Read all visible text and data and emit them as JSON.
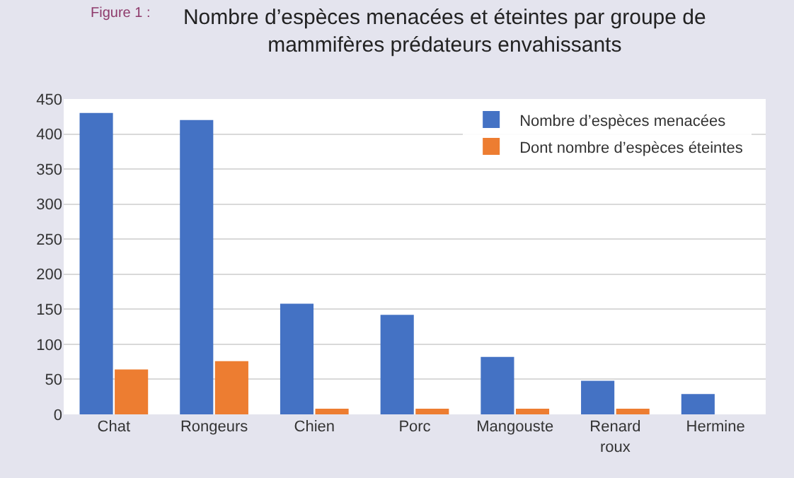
{
  "chart_data": {
    "type": "bar",
    "title": "Nombre d’espèces menacées et éteintes par groupe de mammifères prédateurs envahissants",
    "annotations": [
      "Figure 1 :"
    ],
    "categories": [
      "Chat",
      "Rongeurs",
      "Chien",
      "Porc",
      "Mangouste",
      "Renard roux",
      "Hermine"
    ],
    "series": [
      {
        "name": "Nombre d’espèces menacées",
        "color": "#4472c4",
        "values": [
          430,
          420,
          158,
          142,
          82,
          48,
          29
        ]
      },
      {
        "name": "Dont nombre d’espèces éteintes",
        "color": "#ed7d31",
        "values": [
          64,
          76,
          8,
          8,
          8,
          8,
          null
        ]
      }
    ],
    "ylim": [
      0,
      450
    ],
    "yticks": [
      0,
      50,
      100,
      150,
      200,
      250,
      300,
      350,
      400,
      450
    ],
    "grid": "y",
    "legend": "top right"
  }
}
